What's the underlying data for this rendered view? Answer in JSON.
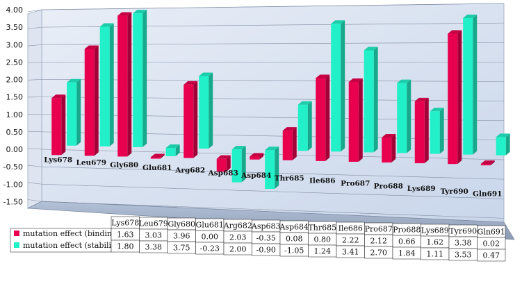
{
  "chart_data": {
    "type": "bar",
    "categories": [
      "Lys678",
      "Leu679",
      "Gly680",
      "Glu681",
      "Arg682",
      "Asp683",
      "Asp684",
      "Thr685",
      "Ile686",
      "Pro687",
      "Pro688",
      "Lys689",
      "Tyr690",
      "Gln691"
    ],
    "series": [
      {
        "name": "mutation effect (binding)",
        "color": "#e8004f",
        "values": [
          1.63,
          3.03,
          3.96,
          0.0,
          2.03,
          -0.35,
          0.08,
          0.8,
          2.22,
          2.12,
          0.66,
          1.62,
          3.38,
          0.02
        ]
      },
      {
        "name": "mutation effect (stability)",
        "color": "#22f0c8",
        "values": [
          1.8,
          3.38,
          3.75,
          -0.23,
          2.0,
          -0.9,
          -1.05,
          1.24,
          3.41,
          2.7,
          1.84,
          1.11,
          3.53,
          0.47
        ]
      }
    ],
    "yticks": [
      "4.00",
      "3.50",
      "3.00",
      "2.50",
      "2.00",
      "1.50",
      "1.00",
      "0.50",
      "0.00",
      "-0.50",
      "-1.00",
      "-1.50"
    ],
    "ylim": [
      -1.5,
      4.0
    ],
    "table": {
      "rows": [
        [
          "1.63",
          "3.03",
          "3.96",
          "0.00",
          "2.03",
          "-0.35",
          "0.08",
          "0.80",
          "2.22",
          "2.12",
          "0.66",
          "1.62",
          "3.38",
          "0.02"
        ],
        [
          "1.80",
          "3.38",
          "3.75",
          "-0.23",
          "2.00",
          "-0.90",
          "-1.05",
          "1.24",
          "3.41",
          "2.70",
          "1.84",
          "1.11",
          "3.53",
          "0.47"
        ]
      ]
    },
    "grid": true,
    "legend": "table-left"
  }
}
